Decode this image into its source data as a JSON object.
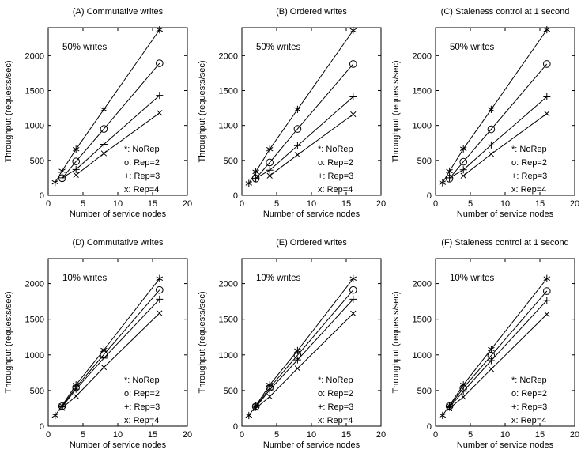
{
  "figure": {
    "background": "#ffffff",
    "line_color": "#000000",
    "text_color": "#000000"
  },
  "chart_data": [
    {
      "id": "A",
      "type": "line",
      "title": "(A) Commutative writes",
      "annotation": "50% writes",
      "xlabel": "Number of service nodes",
      "ylabel": "Throughput (requests/sec)",
      "xlim": [
        0,
        20
      ],
      "ylim": [
        0,
        2400
      ],
      "xticks": [
        0,
        5,
        10,
        15,
        20
      ],
      "yticks": [
        0,
        500,
        1000,
        1500,
        2000
      ],
      "grid": false,
      "legend_position": "lower-right",
      "legend": [
        "*: NoRep",
        "o: Rep=2",
        "+: Rep=3",
        "x: Rep=4"
      ],
      "series": [
        {
          "name": "NoRep",
          "marker": "star",
          "x": [
            1,
            2,
            4,
            8,
            16
          ],
          "y": [
            185,
            350,
            660,
            1230,
            2370
          ]
        },
        {
          "name": "Rep=2",
          "marker": "circle",
          "x": [
            2,
            4,
            8,
            16
          ],
          "y": [
            245,
            485,
            950,
            1890
          ]
        },
        {
          "name": "Rep=3",
          "marker": "plus",
          "x": [
            2,
            4,
            8,
            16
          ],
          "y": [
            250,
            370,
            730,
            1430
          ]
        },
        {
          "name": "Rep=4",
          "marker": "cross",
          "x": [
            4,
            8,
            16
          ],
          "y": [
            290,
            600,
            1180
          ]
        }
      ]
    },
    {
      "id": "B",
      "type": "line",
      "title": "(B) Ordered writes",
      "annotation": "50% writes",
      "xlabel": "Number of service nodes",
      "ylabel": "Throughput (requests/sec)",
      "xlim": [
        0,
        20
      ],
      "ylim": [
        0,
        2400
      ],
      "xticks": [
        0,
        5,
        10,
        15,
        20
      ],
      "yticks": [
        0,
        500,
        1000,
        1500,
        2000
      ],
      "grid": false,
      "legend_position": "lower-right",
      "legend": [
        "*: NoRep",
        "o: Rep=2",
        "+: Rep=3",
        "x: Rep=4"
      ],
      "series": [
        {
          "name": "NoRep",
          "marker": "star",
          "x": [
            1,
            2,
            4,
            8,
            16
          ],
          "y": [
            170,
            335,
            660,
            1230,
            2360
          ]
        },
        {
          "name": "Rep=2",
          "marker": "circle",
          "x": [
            2,
            4,
            8,
            16
          ],
          "y": [
            240,
            470,
            950,
            1880
          ]
        },
        {
          "name": "Rep=3",
          "marker": "plus",
          "x": [
            2,
            4,
            8,
            16
          ],
          "y": [
            245,
            360,
            710,
            1410
          ]
        },
        {
          "name": "Rep=4",
          "marker": "cross",
          "x": [
            4,
            8,
            16
          ],
          "y": [
            280,
            580,
            1160
          ]
        }
      ]
    },
    {
      "id": "C",
      "type": "line",
      "title": "(C) Staleness control at 1 second",
      "annotation": "50% writes",
      "xlabel": "Number of service nodes",
      "ylabel": "Throughput (requests/sec)",
      "xlim": [
        0,
        20
      ],
      "ylim": [
        0,
        2400
      ],
      "xticks": [
        0,
        5,
        10,
        15,
        20
      ],
      "yticks": [
        0,
        500,
        1000,
        1500,
        2000
      ],
      "grid": false,
      "legend_position": "lower-right",
      "legend": [
        "*: NoRep",
        "o: Rep=2",
        "+: Rep=3",
        "x: Rep=4"
      ],
      "series": [
        {
          "name": "NoRep",
          "marker": "star",
          "x": [
            1,
            2,
            4,
            8,
            16
          ],
          "y": [
            180,
            345,
            665,
            1230,
            2370
          ]
        },
        {
          "name": "Rep=2",
          "marker": "circle",
          "x": [
            2,
            4,
            8,
            16
          ],
          "y": [
            240,
            480,
            945,
            1880
          ]
        },
        {
          "name": "Rep=3",
          "marker": "plus",
          "x": [
            2,
            4,
            8,
            16
          ],
          "y": [
            250,
            365,
            720,
            1410
          ]
        },
        {
          "name": "Rep=4",
          "marker": "cross",
          "x": [
            4,
            8,
            16
          ],
          "y": [
            280,
            590,
            1170
          ]
        }
      ]
    },
    {
      "id": "D",
      "type": "line",
      "title": "(D) Commutative writes",
      "annotation": "10% writes",
      "xlabel": "Number of service nodes",
      "ylabel": "Throughput (requests/sec)",
      "xlim": [
        0,
        20
      ],
      "ylim": [
        0,
        2350
      ],
      "xticks": [
        0,
        5,
        10,
        15,
        20
      ],
      "yticks": [
        0,
        500,
        1000,
        1500,
        2000
      ],
      "grid": false,
      "legend_position": "lower-right",
      "legend": [
        "*: NoRep",
        "o: Rep=2",
        "+: Rep=3",
        "x: Rep=4"
      ],
      "series": [
        {
          "name": "NoRep",
          "marker": "star",
          "x": [
            1,
            2,
            4,
            8,
            16
          ],
          "y": [
            150,
            290,
            580,
            1070,
            2070
          ]
        },
        {
          "name": "Rep=2",
          "marker": "circle",
          "x": [
            2,
            4,
            8,
            16
          ],
          "y": [
            280,
            545,
            1005,
            1910
          ]
        },
        {
          "name": "Rep=3",
          "marker": "plus",
          "x": [
            2,
            4,
            8,
            16
          ],
          "y": [
            270,
            520,
            955,
            1780
          ]
        },
        {
          "name": "Rep=4",
          "marker": "cross",
          "x": [
            2,
            4,
            8,
            16
          ],
          "y": [
            255,
            420,
            825,
            1585
          ]
        }
      ]
    },
    {
      "id": "E",
      "type": "line",
      "title": "(E) Ordered writes",
      "annotation": "10% writes",
      "xlabel": "Number of service nodes",
      "ylabel": "Throughput (requests/sec)",
      "xlim": [
        0,
        20
      ],
      "ylim": [
        0,
        2350
      ],
      "xticks": [
        0,
        5,
        10,
        15,
        20
      ],
      "yticks": [
        0,
        500,
        1000,
        1500,
        2000
      ],
      "grid": false,
      "legend_position": "lower-right",
      "legend": [
        "*: NoRep",
        "o: Rep=2",
        "+: Rep=3",
        "x: Rep=4"
      ],
      "series": [
        {
          "name": "NoRep",
          "marker": "star",
          "x": [
            1,
            2,
            4,
            8,
            16
          ],
          "y": [
            150,
            285,
            580,
            1060,
            2070
          ]
        },
        {
          "name": "Rep=2",
          "marker": "circle",
          "x": [
            2,
            4,
            8,
            16
          ],
          "y": [
            275,
            540,
            995,
            1910
          ]
        },
        {
          "name": "Rep=3",
          "marker": "plus",
          "x": [
            2,
            4,
            8,
            16
          ],
          "y": [
            265,
            510,
            930,
            1780
          ]
        },
        {
          "name": "Rep=4",
          "marker": "cross",
          "x": [
            2,
            4,
            8,
            16
          ],
          "y": [
            250,
            415,
            810,
            1580
          ]
        }
      ]
    },
    {
      "id": "F",
      "type": "line",
      "title": "(F) Staleness control at 1 second",
      "annotation": "10% writes",
      "xlabel": "Number of service nodes",
      "ylabel": "Throughput (requests/sec)",
      "xlim": [
        0,
        20
      ],
      "ylim": [
        0,
        2350
      ],
      "xticks": [
        0,
        5,
        10,
        15,
        20
      ],
      "yticks": [
        0,
        500,
        1000,
        1500,
        2000
      ],
      "grid": false,
      "legend_position": "lower-right",
      "legend": [
        "*: NoRep",
        "o: Rep=2",
        "+: Rep=3",
        "x: Rep=4"
      ],
      "series": [
        {
          "name": "NoRep",
          "marker": "star",
          "x": [
            1,
            2,
            4,
            8,
            16
          ],
          "y": [
            150,
            290,
            580,
            1080,
            2070
          ]
        },
        {
          "name": "Rep=2",
          "marker": "circle",
          "x": [
            2,
            4,
            8,
            16
          ],
          "y": [
            280,
            535,
            990,
            1895
          ]
        },
        {
          "name": "Rep=3",
          "marker": "plus",
          "x": [
            2,
            4,
            8,
            16
          ],
          "y": [
            265,
            490,
            920,
            1765
          ]
        },
        {
          "name": "Rep=4",
          "marker": "cross",
          "x": [
            2,
            4,
            8,
            16
          ],
          "y": [
            250,
            410,
            800,
            1570
          ]
        }
      ]
    }
  ]
}
